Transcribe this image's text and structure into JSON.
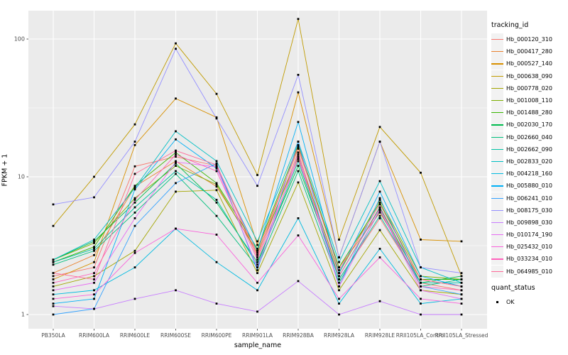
{
  "y_axis": {
    "title": "FPKM + 1",
    "tick_labels": [
      "1",
      "10",
      "100"
    ]
  },
  "x_axis": {
    "title": "sample_name"
  },
  "legend": {
    "tracking_title": "tracking_id",
    "quant_title": "quant_status",
    "quant_entries": [
      {
        "label": "OK",
        "marker": "black-square"
      }
    ]
  },
  "colors": {
    "panel_background": "#EBEBEB",
    "gridline": "#FFFFFF",
    "tick_text": "#4D4D4D",
    "marker": "#000000"
  },
  "chart_data": {
    "type": "line",
    "title": "",
    "xlabel": "sample_name",
    "ylabel": "FPKM + 1",
    "y_scale": "log10",
    "y_ticks": [
      1,
      10,
      100
    ],
    "ylim": [
      0.8,
      160
    ],
    "grid": "major+minor",
    "legend_position": "right",
    "marker": {
      "shape": "square",
      "color": "#000000",
      "legend_label": "OK"
    },
    "x_categories": [
      "PB350LA",
      "RRIM600LA",
      "RRIM600LE",
      "RRIM600SE",
      "RRIM600PE",
      "RRIM901LA",
      "RRIM928BA",
      "RRIM928LA",
      "RRIM928LE",
      "RRII105LA_Control",
      "RRII105LA_Stressed"
    ],
    "series": [
      {
        "name": "Hb_000120_310",
        "color": "#F8766D",
        "values": [
          1.9,
          2.2,
          11.9,
          14.0,
          12.0,
          2.6,
          15.0,
          1.8,
          5.0,
          1.7,
          1.5
        ]
      },
      {
        "name": "Hb_000417_280",
        "color": "#EA8331",
        "values": [
          2.0,
          2.7,
          8.5,
          13.0,
          8.5,
          2.9,
          16.0,
          2.2,
          5.5,
          1.8,
          1.6
        ]
      },
      {
        "name": "Hb_000527_140",
        "color": "#D89000",
        "values": [
          1.8,
          2.4,
          17.0,
          37.0,
          27.0,
          3.2,
          41.0,
          2.6,
          18.0,
          3.5,
          3.4
        ]
      },
      {
        "name": "Hb_000638_090",
        "color": "#C09B00",
        "values": [
          4.4,
          10.0,
          24.0,
          93.0,
          40.0,
          10.3,
          140.0,
          3.5,
          23.0,
          10.7,
          1.9
        ]
      },
      {
        "name": "Hb_000778_020",
        "color": "#A3A500",
        "values": [
          1.6,
          1.9,
          2.9,
          7.8,
          8.0,
          2.0,
          9.1,
          1.5,
          4.1,
          1.5,
          1.4
        ]
      },
      {
        "name": "Hb_001008_110",
        "color": "#7CAE00",
        "values": [
          2.5,
          3.3,
          7.0,
          12.0,
          8.8,
          2.8,
          14.0,
          2.0,
          6.8,
          1.9,
          1.8
        ]
      },
      {
        "name": "Hb_001488_280",
        "color": "#39B600",
        "values": [
          2.4,
          3.1,
          8.6,
          15.0,
          9.0,
          3.0,
          17.0,
          2.2,
          6.5,
          1.8,
          1.8
        ]
      },
      {
        "name": "Hb_002030_170",
        "color": "#00BB4E",
        "values": [
          2.5,
          3.4,
          6.5,
          12.5,
          6.5,
          2.4,
          12.0,
          1.9,
          6.0,
          1.7,
          1.9
        ]
      },
      {
        "name": "Hb_002660_040",
        "color": "#00BF7D",
        "values": [
          2.3,
          2.9,
          5.5,
          10.5,
          5.2,
          2.2,
          11.0,
          1.7,
          5.7,
          1.6,
          1.8
        ]
      },
      {
        "name": "Hb_002662_090",
        "color": "#00C1A3",
        "values": [
          2.4,
          3.0,
          6.0,
          11.0,
          6.8,
          2.3,
          13.0,
          1.8,
          5.2,
          1.7,
          1.7
        ]
      },
      {
        "name": "Hb_002833_020",
        "color": "#00BFC4",
        "values": [
          2.5,
          3.5,
          8.3,
          21.4,
          13.0,
          3.4,
          18.0,
          2.4,
          9.3,
          2.2,
          1.7
        ]
      },
      {
        "name": "Hb_004218_160",
        "color": "#00BAE0",
        "values": [
          1.4,
          1.5,
          2.2,
          4.2,
          2.4,
          1.5,
          5.0,
          1.2,
          3.0,
          1.2,
          1.3
        ]
      },
      {
        "name": "Hb_005880_010",
        "color": "#00B0F6",
        "values": [
          1.2,
          1.3,
          8.1,
          18.7,
          11.5,
          2.9,
          25.0,
          2.0,
          7.8,
          1.9,
          1.6
        ]
      },
      {
        "name": "Hb_006241_010",
        "color": "#35A2FF",
        "values": [
          1.0,
          1.1,
          4.4,
          9.0,
          12.5,
          2.1,
          18.0,
          1.6,
          7.0,
          1.6,
          1.4
        ]
      },
      {
        "name": "Hb_008175_030",
        "color": "#9590FF",
        "values": [
          6.3,
          7.1,
          18.0,
          85.0,
          26.5,
          8.6,
          55.0,
          2.6,
          18.0,
          2.2,
          2.0
        ]
      },
      {
        "name": "Hb_009898_030",
        "color": "#C77CFF",
        "values": [
          1.15,
          1.1,
          1.3,
          1.5,
          1.2,
          1.05,
          1.75,
          1.0,
          1.25,
          1.0,
          1.0
        ]
      },
      {
        "name": "Hb_010174_190",
        "color": "#E76BF3",
        "values": [
          1.5,
          1.7,
          5.0,
          12.8,
          11.8,
          2.2,
          14.5,
          1.6,
          5.8,
          1.5,
          1.3
        ]
      },
      {
        "name": "Hb_025432_010",
        "color": "#FA62DB",
        "values": [
          1.3,
          1.4,
          2.8,
          4.2,
          3.8,
          1.7,
          3.75,
          1.3,
          2.6,
          1.3,
          1.2
        ]
      },
      {
        "name": "Hb_033234_010",
        "color": "#FF62BC",
        "values": [
          1.7,
          2.0,
          6.8,
          14.5,
          11.0,
          2.5,
          13.5,
          1.9,
          5.9,
          1.6,
          1.5
        ]
      },
      {
        "name": "Hb_064985_010",
        "color": "#FF6A98",
        "values": [
          2.0,
          1.8,
          10.5,
          15.5,
          12.2,
          2.7,
          16.5,
          2.1,
          6.3,
          1.8,
          1.6
        ]
      }
    ]
  }
}
